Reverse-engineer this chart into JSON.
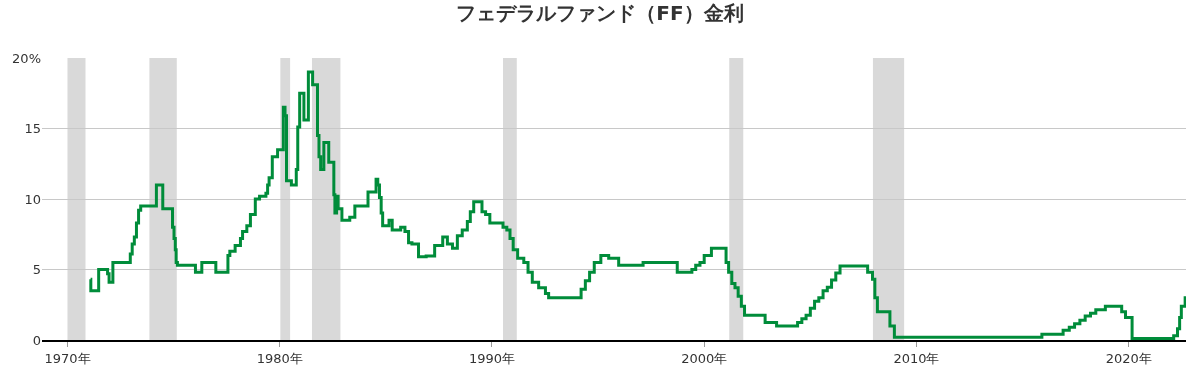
{
  "chart_data": {
    "type": "step",
    "title": "フェデラルファンド（FF）金利",
    "x": [
      1971.09,
      1971.1,
      1971.47,
      1971.89,
      1971.96,
      1972.14,
      1972.96,
      1973.05,
      1973.15,
      1973.25,
      1973.35,
      1973.45,
      1973.55,
      1974.19,
      1974.49,
      1974.95,
      1975.02,
      1975.08,
      1975.12,
      1975.18,
      1975.25,
      1976.03,
      1976.33,
      1976.99,
      1977.56,
      1977.65,
      1977.9,
      1978.15,
      1978.25,
      1978.45,
      1978.62,
      1978.85,
      1979.05,
      1979.35,
      1979.43,
      1979.5,
      1979.65,
      1979.9,
      1980.17,
      1980.25,
      1980.32,
      1980.55,
      1980.78,
      1980.85,
      1980.94,
      1981.14,
      1981.35,
      1981.55,
      1981.78,
      1981.85,
      1981.93,
      1982.08,
      1982.31,
      1982.55,
      1982.6,
      1982.68,
      1982.75,
      1982.93,
      1983.3,
      1983.54,
      1984.16,
      1984.54,
      1984.62,
      1984.7,
      1984.78,
      1984.85,
      1985.0,
      1985.15,
      1985.3,
      1985.7,
      1985.9,
      1986.07,
      1986.23,
      1986.54,
      1986.9,
      1987.3,
      1987.68,
      1987.9,
      1988.14,
      1988.37,
      1988.6,
      1988.84,
      1988.98,
      1989.14,
      1989.53,
      1989.7,
      1989.9,
      1990.52,
      1990.7,
      1990.85,
      1991.0,
      1991.21,
      1991.5,
      1991.7,
      1991.9,
      1992.2,
      1992.52,
      1992.67,
      1994.05,
      1994.2,
      1994.4,
      1994.6,
      1994.82,
      1995.13,
      1995.5,
      1995.97,
      1997.12,
      1998.73,
      1999.42,
      1999.6,
      1999.8,
      2000.0,
      2000.34,
      2001.03,
      2001.15,
      2001.3,
      2001.45,
      2001.6,
      2001.75,
      2001.9,
      2002.87,
      2003.41,
      2004.4,
      2004.6,
      2004.8,
      2005.0,
      2005.2,
      2005.4,
      2005.6,
      2005.8,
      2006.0,
      2006.2,
      2006.4,
      2007.7,
      2007.93,
      2008.04,
      2008.16,
      2008.75,
      2008.96,
      2015.91,
      2016.91,
      2017.2,
      2017.45,
      2017.7,
      2017.95,
      2018.2,
      2018.45,
      2018.9,
      2019.67,
      2019.85,
      2020.16,
      2022.12,
      2022.3,
      2022.4,
      2022.48,
      2022.66
    ],
    "values": [
      4.3,
      3.5,
      5.0,
      4.7,
      4.1,
      5.5,
      6.1,
      6.8,
      7.3,
      8.3,
      9.2,
      9.5,
      9.5,
      11.0,
      9.3,
      8.0,
      7.2,
      6.4,
      5.5,
      5.3,
      5.3,
      4.8,
      5.5,
      4.8,
      6.0,
      6.3,
      6.7,
      7.2,
      7.7,
      8.1,
      8.9,
      10.0,
      10.2,
      10.4,
      11.0,
      11.5,
      13.0,
      13.5,
      16.5,
      15.9,
      11.3,
      11.0,
      12.1,
      15.1,
      17.5,
      15.6,
      19.0,
      18.1,
      14.5,
      13.0,
      12.1,
      14.0,
      12.6,
      10.3,
      9.0,
      10.2,
      9.3,
      8.5,
      8.7,
      9.5,
      10.5,
      11.4,
      11.0,
      10.1,
      9.0,
      8.1,
      8.1,
      8.5,
      7.8,
      8.0,
      7.7,
      6.9,
      6.8,
      5.9,
      5.95,
      6.7,
      7.3,
      6.8,
      6.5,
      7.4,
      7.8,
      8.4,
      9.1,
      9.8,
      9.1,
      8.9,
      8.3,
      8.0,
      7.8,
      7.2,
      6.4,
      5.8,
      5.5,
      4.8,
      4.1,
      3.7,
      3.3,
      3.0,
      3.0,
      3.6,
      4.2,
      4.8,
      5.5,
      6.0,
      5.8,
      5.3,
      5.5,
      4.8,
      5.0,
      5.3,
      5.5,
      6.0,
      6.5,
      5.5,
      4.8,
      4.0,
      3.7,
      3.1,
      2.4,
      1.75,
      1.25,
      1.0,
      1.25,
      1.5,
      1.75,
      2.25,
      2.75,
      3.0,
      3.5,
      3.75,
      4.25,
      4.75,
      5.25,
      4.8,
      4.3,
      3.0,
      2.0,
      1.0,
      0.2,
      0.4,
      0.7,
      0.9,
      1.15,
      1.4,
      1.7,
      1.9,
      2.15,
      2.4,
      2.0,
      1.6,
      0.1,
      0.3,
      0.8,
      1.6,
      2.4,
      3.1
    ],
    "color": "#008c3a",
    "xlim": [
      1968.8,
      2022.7
    ],
    "xticks": [
      {
        "value": 1970,
        "label": "1970年"
      },
      {
        "value": 1980,
        "label": "1980年"
      },
      {
        "value": 1990,
        "label": "1990年"
      },
      {
        "value": 2000,
        "label": "2000年"
      },
      {
        "value": 2010,
        "label": "2010年"
      },
      {
        "value": 2020,
        "label": "2020年"
      }
    ],
    "ylim": [
      0,
      20
    ],
    "yticks": [
      0,
      5,
      10,
      15,
      {
        "value": 20,
        "label": "20%"
      }
    ],
    "grid": "y",
    "bands": [
      {
        "axis": "x",
        "from": 1970.0,
        "to": 1970.85,
        "color": "#d9d9d9"
      },
      {
        "axis": "x",
        "from": 1973.86,
        "to": 1975.15,
        "color": "#d9d9d9"
      },
      {
        "axis": "x",
        "from": 1980.03,
        "to": 1980.49,
        "color": "#d9d9d9"
      },
      {
        "axis": "x",
        "from": 1981.52,
        "to": 1982.86,
        "color": "#d9d9d9"
      },
      {
        "axis": "x",
        "from": 1990.52,
        "to": 1991.17,
        "color": "#d9d9d9"
      },
      {
        "axis": "x",
        "from": 2001.18,
        "to": 2001.84,
        "color": "#d9d9d9"
      },
      {
        "axis": "x",
        "from": 2007.95,
        "to": 2009.42,
        "color": "#d9d9d9"
      }
    ]
  }
}
